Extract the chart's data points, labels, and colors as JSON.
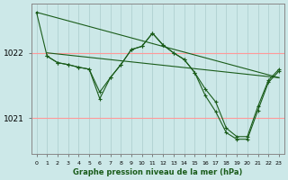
{
  "title": "Graphe pression niveau de la mer (hPa)",
  "background_color": "#cce8e8",
  "grid_color_h": "#ff9999",
  "grid_color_v": "#aacccc",
  "line_color": "#1a5c1a",
  "x_ticks": [
    0,
    1,
    2,
    3,
    4,
    5,
    6,
    7,
    8,
    9,
    10,
    11,
    12,
    13,
    14,
    15,
    16,
    17,
    18,
    19,
    20,
    21,
    22,
    23
  ],
  "ylim": [
    1020.45,
    1022.75
  ],
  "yticks": [
    1021.0,
    1022.0
  ],
  "series": [
    {
      "x": [
        0,
        23
      ],
      "y": [
        1022.62,
        1021.62
      ]
    },
    {
      "x": [
        1,
        23
      ],
      "y": [
        1022.0,
        1021.62
      ]
    },
    {
      "x": [
        1,
        2,
        3,
        4,
        5,
        6,
        7,
        8,
        9,
        10,
        11,
        12,
        13,
        14,
        15,
        16,
        17,
        18,
        19,
        20,
        21,
        22,
        23
      ],
      "y": [
        1021.95,
        1021.85,
        1021.82,
        1021.78,
        1021.75,
        1021.4,
        1021.62,
        1021.82,
        1022.05,
        1022.1,
        1022.3,
        1022.12,
        1022.0,
        1021.9,
        1021.7,
        1021.45,
        1021.25,
        1020.85,
        1020.72,
        1020.72,
        1021.18,
        1021.58,
        1021.75
      ]
    },
    {
      "x": [
        0,
        1,
        2,
        3,
        4,
        5,
        6,
        7,
        8,
        9,
        10,
        11,
        12,
        13,
        14,
        15,
        16,
        17,
        18,
        19,
        20,
        21,
        22,
        23
      ],
      "y": [
        1022.62,
        1021.95,
        1021.85,
        1021.82,
        1021.78,
        1021.75,
        1021.3,
        1021.62,
        1021.82,
        1022.05,
        1022.1,
        1022.3,
        1022.12,
        1022.0,
        1021.9,
        1021.7,
        1021.35,
        1021.1,
        1020.78,
        1020.68,
        1020.68,
        1021.12,
        1021.55,
        1021.72
      ]
    }
  ]
}
